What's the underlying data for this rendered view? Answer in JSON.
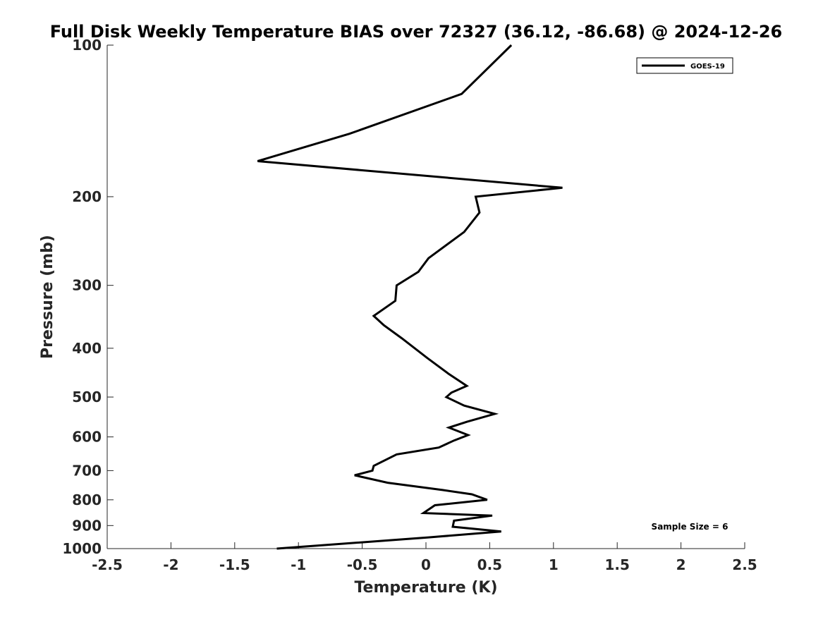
{
  "chart_data": {
    "type": "line",
    "title": "Full Disk Weekly Temperature BIAS over 72327 (36.12, -86.68) @ 2024-12-26",
    "xlabel": "Temperature (K)",
    "ylabel": "Pressure (mb)",
    "xlim": [
      -2.5,
      2.5
    ],
    "ylim": [
      100,
      1000
    ],
    "yscale": "log",
    "yreversed": true,
    "xticks": [
      -2.5,
      -2,
      -1.5,
      -1,
      -0.5,
      0,
      0.5,
      1,
      1.5,
      2,
      2.5
    ],
    "xtick_labels": [
      "-2.5",
      "-2",
      "-1.5",
      "-1",
      "-0.5",
      "0",
      "0.5",
      "1",
      "1.5",
      "2",
      "2.5"
    ],
    "yticks": [
      100,
      200,
      300,
      400,
      500,
      600,
      700,
      800,
      900,
      1000
    ],
    "ytick_labels": [
      "100",
      "200",
      "300",
      "400",
      "500",
      "600",
      "700",
      "800",
      "900",
      "1000"
    ],
    "grid": false,
    "legend_position": "top-right",
    "series": [
      {
        "name": "GOES-19",
        "color": "#000000",
        "points": [
          [
            0.67,
            100
          ],
          [
            0.28,
            125
          ],
          [
            -0.6,
            150
          ],
          [
            -1.32,
            170
          ],
          [
            1.07,
            192
          ],
          [
            0.39,
            200
          ],
          [
            0.42,
            215
          ],
          [
            0.3,
            235
          ],
          [
            0.02,
            265
          ],
          [
            -0.06,
            282
          ],
          [
            -0.23,
            300
          ],
          [
            -0.24,
            322
          ],
          [
            -0.41,
            345
          ],
          [
            -0.33,
            360
          ],
          [
            -0.19,
            382
          ],
          [
            0.02,
            420
          ],
          [
            0.18,
            450
          ],
          [
            0.32,
            475
          ],
          [
            0.2,
            490
          ],
          [
            0.16,
            500
          ],
          [
            0.3,
            520
          ],
          [
            0.54,
            540
          ],
          [
            0.32,
            560
          ],
          [
            0.18,
            575
          ],
          [
            0.33,
            595
          ],
          [
            0.22,
            610
          ],
          [
            0.1,
            630
          ],
          [
            -0.23,
            650
          ],
          [
            -0.41,
            685
          ],
          [
            -0.42,
            700
          ],
          [
            -0.56,
            715
          ],
          [
            -0.3,
            740
          ],
          [
            0.13,
            765
          ],
          [
            0.36,
            780
          ],
          [
            0.48,
            800
          ],
          [
            0.07,
            820
          ],
          [
            -0.02,
            850
          ],
          [
            0.52,
            860
          ],
          [
            0.22,
            880
          ],
          [
            0.21,
            905
          ],
          [
            0.59,
            925
          ],
          [
            0.02,
            950
          ],
          [
            -1.17,
            1000
          ]
        ]
      }
    ],
    "annotation": "Sample Size = 6"
  }
}
